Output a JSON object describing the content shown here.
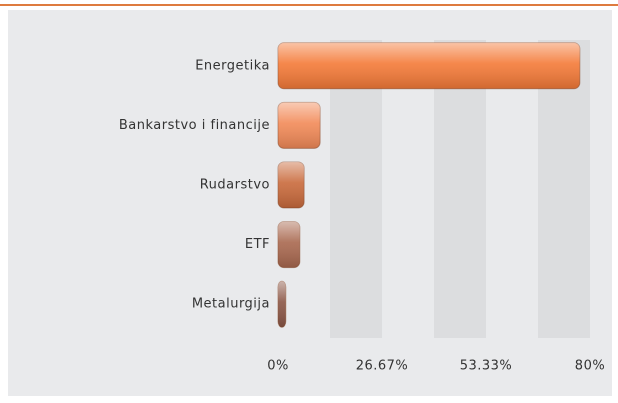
{
  "chart_data": {
    "type": "hbar",
    "categories": [
      "Energetika",
      "Bankarstvo i financije",
      "Rudarstvo",
      "ETF",
      "Metalurgija"
    ],
    "values": [
      77.4,
      10.8,
      6.7,
      5.6,
      2
    ],
    "colors": [
      "#f47a38",
      "#f28a58",
      "#c96a3c",
      "#a9684f",
      "#8b5646"
    ],
    "xlim": [
      0,
      80
    ],
    "xticks": [
      {
        "value": 0,
        "label": "0%"
      },
      {
        "value": 26.67,
        "label": "26.67%"
      },
      {
        "value": 53.33,
        "label": "53.33%"
      },
      {
        "value": 80,
        "label": "80%"
      }
    ],
    "grid": true
  }
}
